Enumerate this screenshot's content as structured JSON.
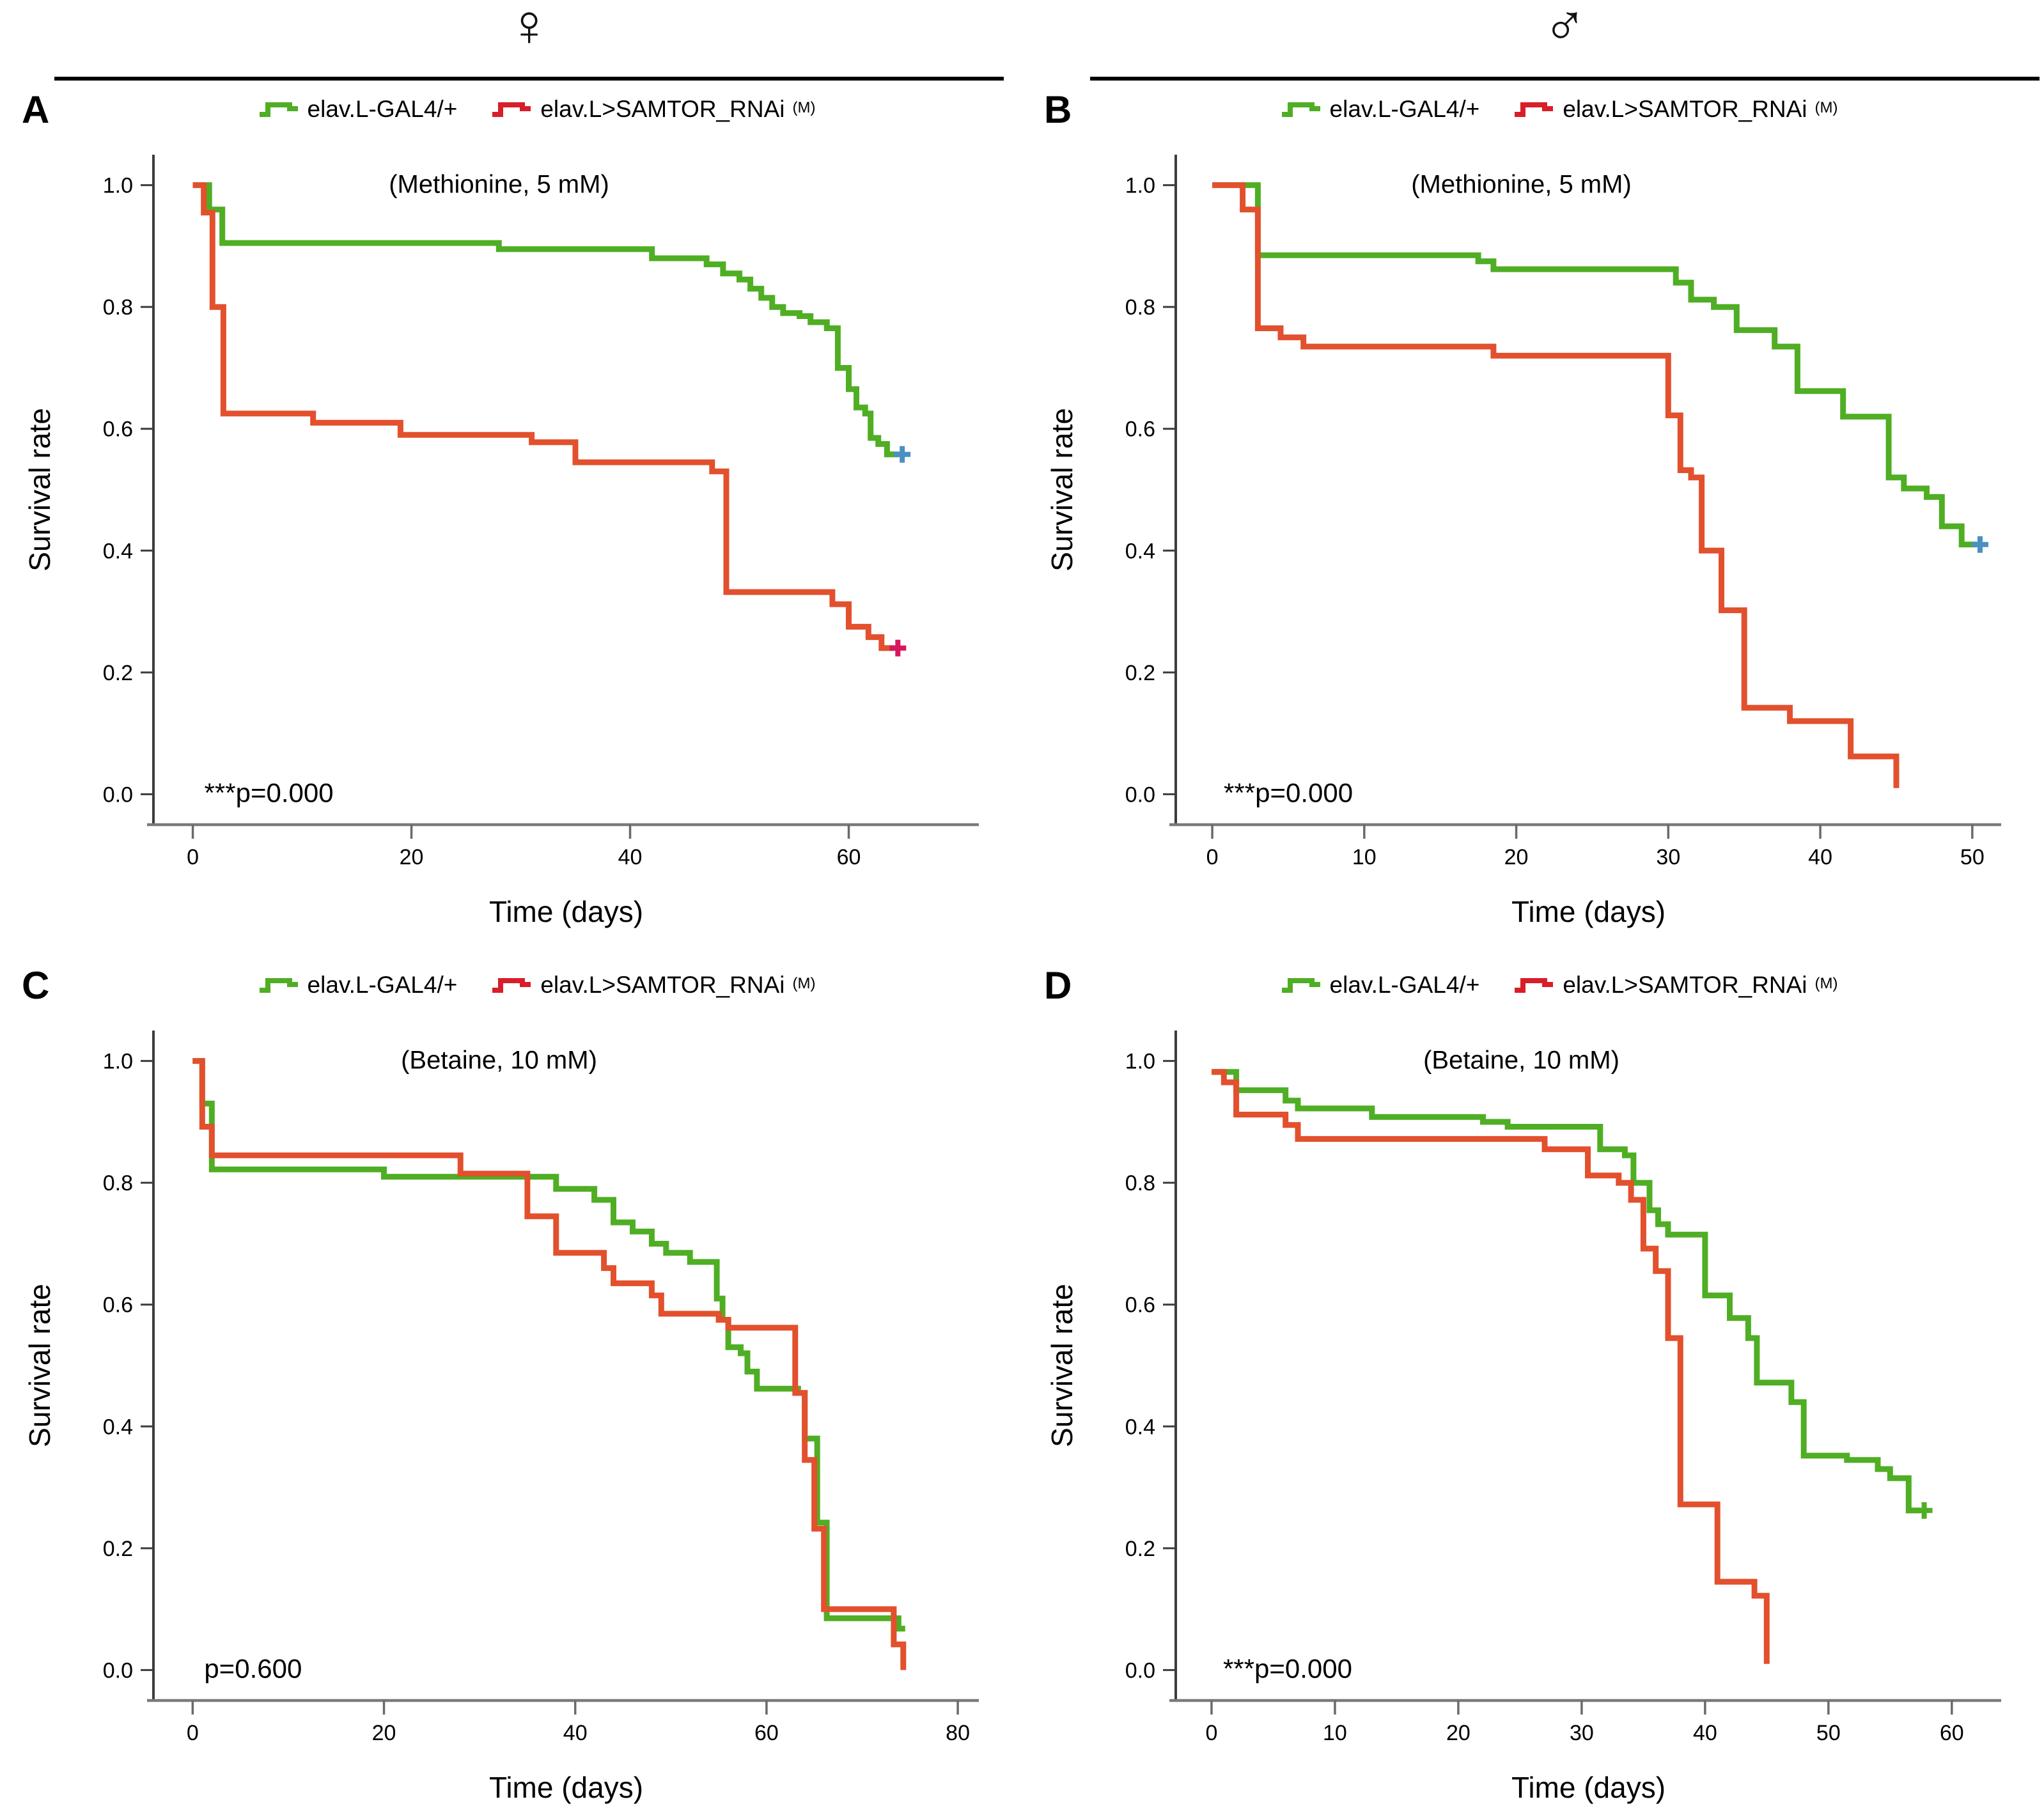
{
  "header": {
    "female_symbol": "♀",
    "male_symbol": "♂"
  },
  "legend": {
    "control": {
      "label": "elav.L-GAL4/+"
    },
    "rnai": {
      "label": "elav.L>SAMTOR_RNAi",
      "sup": "(M)"
    }
  },
  "colors": {
    "control_green": "#4fae23",
    "rnai_red_curve": "#e2502d",
    "rnai_red_legend": "#d81e28",
    "censor_blue": "#4a90c2",
    "censor_pink": "#d6175e",
    "axis_y": "#3c3c3c",
    "axis_x": "#7a7a7a",
    "tick_x": "#6a6a6a",
    "text": "#000000"
  },
  "chart_data": [
    {
      "type": "line",
      "step": true,
      "panel": "A",
      "sex": "female",
      "title": "(Methionine, 5 mM)",
      "p_text": "***p=0.000",
      "xlabel": "Time (days)",
      "ylabel": "Survival rate",
      "xticks": [
        0,
        20,
        40,
        60
      ],
      "yticks": [
        0.0,
        0.2,
        0.4,
        0.6,
        0.8,
        1.0
      ],
      "xlim": [
        -3.6,
        71.9
      ],
      "ylim": [
        -0.05,
        1.05
      ],
      "series": [
        {
          "name": "elav.L-GAL4/+",
          "color_key": "control_green",
          "censor": {
            "show": true,
            "color_key": "censor_blue"
          },
          "points": [
            [
              0,
              1.0
            ],
            [
              1.5,
              0.96
            ],
            [
              2.7,
              0.905
            ],
            [
              28,
              0.895
            ],
            [
              42,
              0.88
            ],
            [
              47,
              0.87
            ],
            [
              48.5,
              0.855
            ],
            [
              50,
              0.845
            ],
            [
              51,
              0.83
            ],
            [
              52,
              0.815
            ],
            [
              53,
              0.8
            ],
            [
              54,
              0.79
            ],
            [
              55.5,
              0.785
            ],
            [
              56.5,
              0.775
            ],
            [
              58,
              0.765
            ],
            [
              59,
              0.7
            ],
            [
              60,
              0.665
            ],
            [
              60.7,
              0.635
            ],
            [
              61.5,
              0.625
            ],
            [
              62,
              0.585
            ],
            [
              62.7,
              0.575
            ],
            [
              63.5,
              0.558
            ],
            [
              64.6,
              0.558
            ]
          ]
        },
        {
          "name": "elav.L>SAMTOR_RNAi(M)",
          "color_key": "rnai_red_curve",
          "censor": {
            "show": true,
            "color_key": "censor_pink"
          },
          "points": [
            [
              0,
              1.0
            ],
            [
              1,
              0.955
            ],
            [
              1.8,
              0.8
            ],
            [
              2.8,
              0.625
            ],
            [
              11,
              0.61
            ],
            [
              19,
              0.59
            ],
            [
              31,
              0.578
            ],
            [
              35,
              0.545
            ],
            [
              47.5,
              0.53
            ],
            [
              48.8,
              0.332
            ],
            [
              58.5,
              0.312
            ],
            [
              60,
              0.275
            ],
            [
              61.8,
              0.258
            ],
            [
              63,
              0.24
            ],
            [
              64.2,
              0.24
            ]
          ]
        }
      ]
    },
    {
      "type": "line",
      "step": true,
      "panel": "B",
      "sex": "male",
      "title": "(Methionine, 5 mM)",
      "p_text": "***p=0.000",
      "xlabel": "Time (days)",
      "ylabel": "Survival rate",
      "xticks": [
        0,
        10,
        20,
        30,
        40,
        50
      ],
      "yticks": [
        0.0,
        0.2,
        0.4,
        0.6,
        0.8,
        1.0
      ],
      "xlim": [
        -2.4,
        51.9
      ],
      "ylim": [
        -0.05,
        1.05
      ],
      "series": [
        {
          "name": "elav.L-GAL4/+",
          "color_key": "control_green",
          "censor": {
            "show": true,
            "color_key": "censor_blue"
          },
          "points": [
            [
              0,
              1.0
            ],
            [
              3,
              0.885
            ],
            [
              17.5,
              0.875
            ],
            [
              18.5,
              0.862
            ],
            [
              30.5,
              0.84
            ],
            [
              31.5,
              0.812
            ],
            [
              33,
              0.8
            ],
            [
              34.5,
              0.762
            ],
            [
              37,
              0.735
            ],
            [
              38.5,
              0.662
            ],
            [
              41.5,
              0.62
            ],
            [
              44.5,
              0.52
            ],
            [
              45.5,
              0.502
            ],
            [
              47,
              0.488
            ],
            [
              48,
              0.44
            ],
            [
              49.3,
              0.41
            ],
            [
              50.3,
              0.41
            ]
          ]
        },
        {
          "name": "elav.L>SAMTOR_RNAi(M)",
          "color_key": "rnai_red_curve",
          "censor": {
            "show": false
          },
          "points": [
            [
              0,
              1.0
            ],
            [
              2,
              0.96
            ],
            [
              3,
              0.765
            ],
            [
              4.5,
              0.75
            ],
            [
              6,
              0.735
            ],
            [
              18.5,
              0.72
            ],
            [
              30,
              0.622
            ],
            [
              30.8,
              0.532
            ],
            [
              31.5,
              0.52
            ],
            [
              32.2,
              0.4
            ],
            [
              33.5,
              0.302
            ],
            [
              35,
              0.142
            ],
            [
              38,
              0.12
            ],
            [
              42,
              0.062
            ],
            [
              45,
              0.01
            ]
          ]
        }
      ]
    },
    {
      "type": "line",
      "step": true,
      "panel": "C",
      "sex": "female",
      "title": "(Betaine, 10 mM)",
      "p_text": "p=0.600",
      "xlabel": "Time (days)",
      "ylabel": "Survival rate",
      "xticks": [
        0,
        20,
        40,
        60,
        80
      ],
      "yticks": [
        0.0,
        0.2,
        0.4,
        0.6,
        0.8,
        1.0
      ],
      "xlim": [
        -4.1,
        82.2
      ],
      "ylim": [
        -0.05,
        1.05
      ],
      "series": [
        {
          "name": "elav.L-GAL4/+",
          "color_key": "control_green",
          "censor": {
            "show": false
          },
          "points": [
            [
              0,
              1.0
            ],
            [
              1,
              0.93
            ],
            [
              2,
              0.822
            ],
            [
              20,
              0.81
            ],
            [
              38,
              0.79
            ],
            [
              42,
              0.772
            ],
            [
              44,
              0.735
            ],
            [
              46,
              0.72
            ],
            [
              48,
              0.7
            ],
            [
              49.5,
              0.685
            ],
            [
              52,
              0.67
            ],
            [
              54.8,
              0.61
            ],
            [
              55.4,
              0.575
            ],
            [
              56,
              0.53
            ],
            [
              57.3,
              0.52
            ],
            [
              58,
              0.49
            ],
            [
              59,
              0.462
            ],
            [
              63.3,
              0.455
            ],
            [
              64,
              0.38
            ],
            [
              65.3,
              0.242
            ],
            [
              66.3,
              0.085
            ],
            [
              73.8,
              0.068
            ],
            [
              74.5,
              0.068
            ]
          ]
        },
        {
          "name": "elav.L>SAMTOR_RNAi(M)",
          "color_key": "rnai_red_curve",
          "censor": {
            "show": false
          },
          "points": [
            [
              0,
              1.0
            ],
            [
              1,
              0.892
            ],
            [
              2,
              0.845
            ],
            [
              28,
              0.815
            ],
            [
              35,
              0.745
            ],
            [
              38,
              0.685
            ],
            [
              43,
              0.66
            ],
            [
              44,
              0.635
            ],
            [
              48,
              0.615
            ],
            [
              49,
              0.585
            ],
            [
              55,
              0.575
            ],
            [
              56,
              0.562
            ],
            [
              63,
              0.455
            ],
            [
              64,
              0.345
            ],
            [
              65,
              0.232
            ],
            [
              66,
              0.1
            ],
            [
              73.3,
              0.042
            ],
            [
              74.3,
              0.0
            ]
          ]
        }
      ]
    },
    {
      "type": "line",
      "step": true,
      "panel": "D",
      "sex": "male",
      "title": "(Betaine, 10 mM)",
      "p_text": "***p=0.000",
      "xlabel": "Time (days)",
      "ylabel": "Survival rate",
      "xticks": [
        0,
        10,
        20,
        30,
        40,
        50,
        60
      ],
      "yticks": [
        0.0,
        0.2,
        0.4,
        0.6,
        0.8,
        1.0
      ],
      "xlim": [
        -2.9,
        64.0
      ],
      "ylim": [
        -0.05,
        1.05
      ],
      "series": [
        {
          "name": "elav.L-GAL4/+",
          "color_key": "control_green",
          "censor": {
            "show": true,
            "color_key": "control_green"
          },
          "points": [
            [
              0,
              0.982
            ],
            [
              2,
              0.952
            ],
            [
              6,
              0.935
            ],
            [
              7,
              0.922
            ],
            [
              13,
              0.908
            ],
            [
              22,
              0.9
            ],
            [
              24,
              0.892
            ],
            [
              31.5,
              0.855
            ],
            [
              33.5,
              0.845
            ],
            [
              34.2,
              0.8
            ],
            [
              35.5,
              0.755
            ],
            [
              36.2,
              0.732
            ],
            [
              37,
              0.715
            ],
            [
              40,
              0.615
            ],
            [
              42,
              0.578
            ],
            [
              43.5,
              0.545
            ],
            [
              44.2,
              0.472
            ],
            [
              47,
              0.44
            ],
            [
              48,
              0.352
            ],
            [
              51.5,
              0.345
            ],
            [
              54,
              0.33
            ],
            [
              55,
              0.315
            ],
            [
              56.5,
              0.262
            ],
            [
              57.5,
              0.262
            ]
          ]
        },
        {
          "name": "elav.L>SAMTOR_RNAi(M)",
          "color_key": "rnai_red_curve",
          "censor": {
            "show": false
          },
          "points": [
            [
              0,
              0.982
            ],
            [
              1,
              0.965
            ],
            [
              2,
              0.912
            ],
            [
              6,
              0.895
            ],
            [
              7,
              0.872
            ],
            [
              27,
              0.855
            ],
            [
              30.5,
              0.812
            ],
            [
              33,
              0.8
            ],
            [
              34,
              0.772
            ],
            [
              35,
              0.692
            ],
            [
              36,
              0.655
            ],
            [
              37,
              0.545
            ],
            [
              38,
              0.272
            ],
            [
              41,
              0.145
            ],
            [
              44,
              0.122
            ],
            [
              45,
              0.01
            ]
          ]
        }
      ]
    }
  ]
}
